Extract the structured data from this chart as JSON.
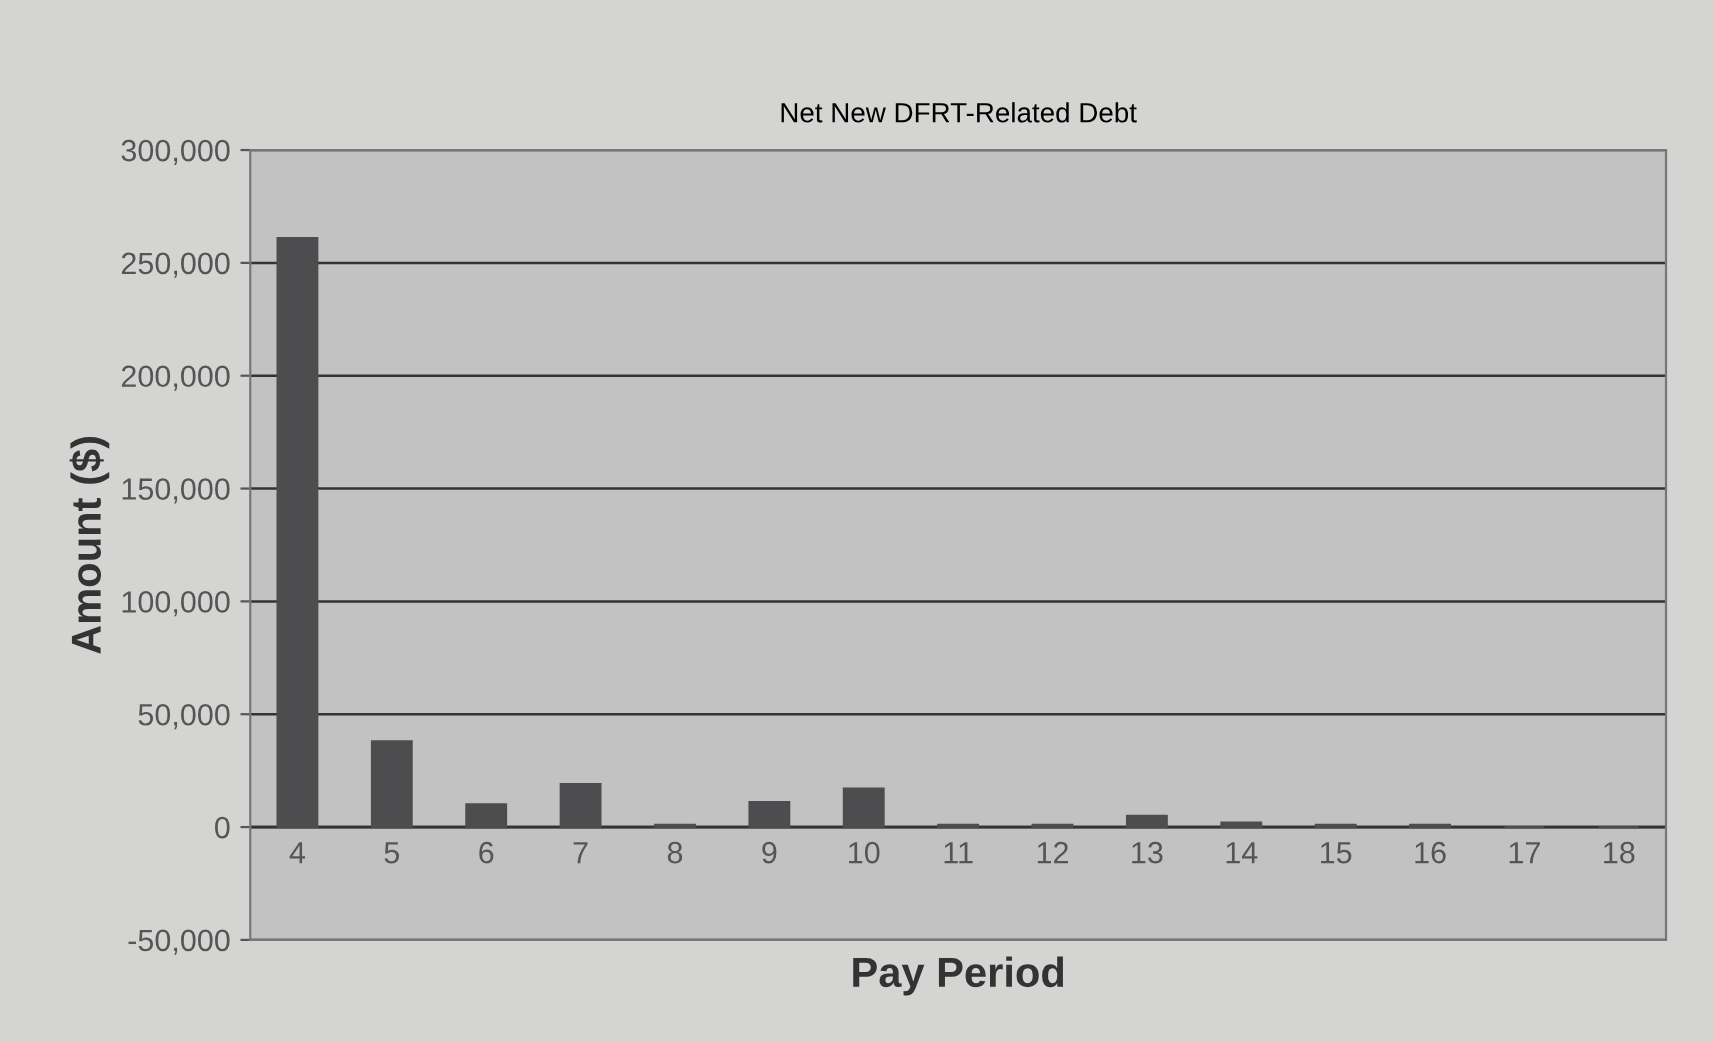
{
  "chart_data": {
    "type": "bar",
    "title": "Net New DFRT-Related Debt",
    "xlabel": "Pay Period",
    "ylabel": "Amount ($)",
    "categories": [
      "4",
      "5",
      "6",
      "7",
      "8",
      "9",
      "10",
      "11",
      "12",
      "13",
      "14",
      "15",
      "16",
      "17",
      "18"
    ],
    "values": [
      261000,
      38000,
      10000,
      19000,
      1000,
      11000,
      17000,
      1000,
      1000,
      5000,
      2000,
      1000,
      1000,
      0,
      0
    ],
    "color": "#4d4d4f",
    "ylim": [
      -50000,
      300000
    ],
    "yticks": [
      {
        "value": -50000,
        "label": "-50,000"
      },
      {
        "value": 0,
        "label": "0"
      },
      {
        "value": 50000,
        "label": "50,000"
      },
      {
        "value": 100000,
        "label": "100,000"
      },
      {
        "value": 150000,
        "label": "150,000"
      },
      {
        "value": 200000,
        "label": "200,000"
      },
      {
        "value": 250000,
        "label": "250,000"
      },
      {
        "value": 300000,
        "label": "300,000"
      }
    ],
    "grid": "y",
    "legend": false
  }
}
